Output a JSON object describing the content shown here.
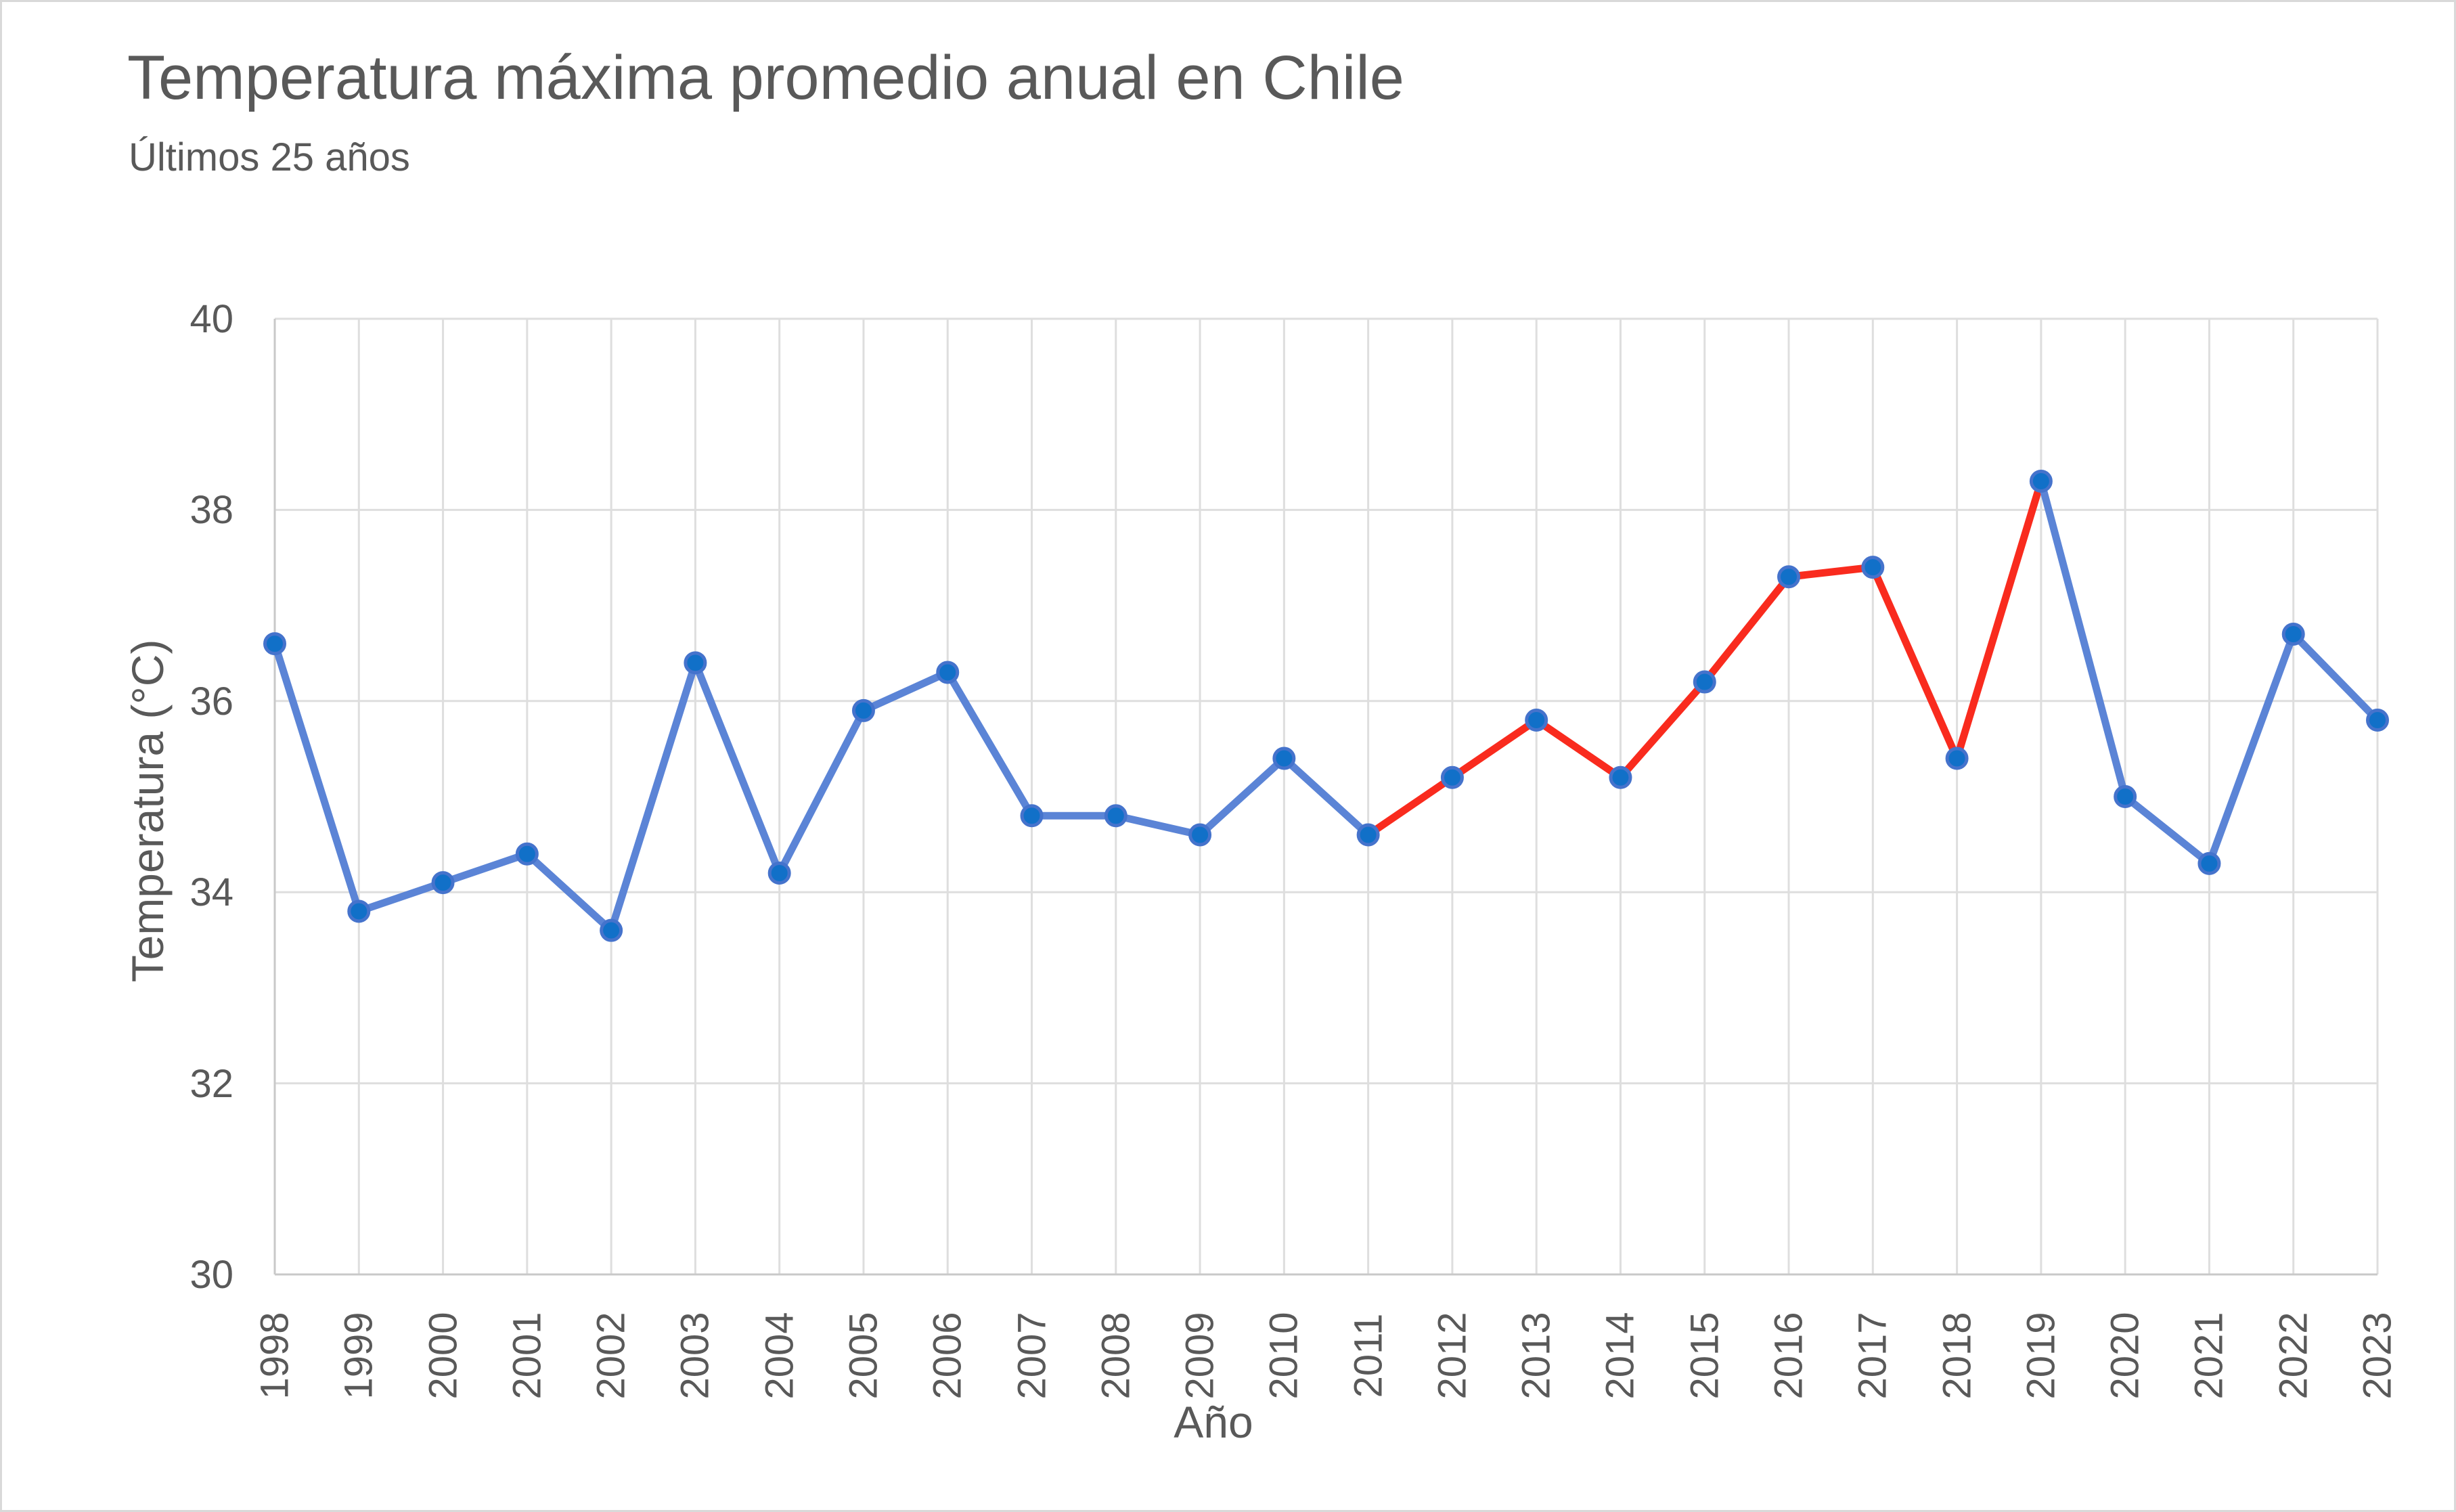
{
  "title": "Temperatura máxima promedio anual en Chile",
  "subtitle": "Últimos 25 años",
  "chart_data": {
    "type": "line",
    "title": "Temperatura máxima promedio anual en Chile",
    "subtitle": "Últimos 25 años",
    "xlabel": "Año",
    "ylabel": "Temperatura (°C)",
    "categories": [
      "1998",
      "1999",
      "2000",
      "2001",
      "2002",
      "2003",
      "2004",
      "2005",
      "2006",
      "2007",
      "2008",
      "2009",
      "2010",
      "2011",
      "2012",
      "2013",
      "2014",
      "2015",
      "2016",
      "2017",
      "2018",
      "2019",
      "2020",
      "2021",
      "2022",
      "2023"
    ],
    "series": [
      {
        "name": "Temperatura máxima promedio anual",
        "values": [
          36.6,
          33.8,
          34.1,
          34.4,
          33.6,
          36.4,
          34.2,
          35.9,
          36.3,
          34.8,
          34.8,
          34.6,
          35.4,
          34.6,
          35.2,
          35.8,
          35.2,
          36.2,
          37.3,
          37.4,
          35.4,
          38.3,
          35.0,
          34.3,
          36.7,
          35.8
        ]
      }
    ],
    "highlight_segment": {
      "start_category": "2011",
      "end_category": "2019"
    },
    "ylim": [
      30,
      40
    ],
    "yticks": [
      30,
      32,
      34,
      36,
      38,
      40
    ],
    "grid": true,
    "legend_position": "none",
    "colors": {
      "line_blue": "#5b84d6",
      "line_red": "#f92b1e",
      "marker_fill": "#1170c8",
      "marker_stroke": "#4573cc",
      "gridline": "#dedede",
      "axis_line": "#c9c9c9",
      "text": "#595959",
      "border": "#d9d9d9",
      "background": "#ffffff"
    }
  }
}
